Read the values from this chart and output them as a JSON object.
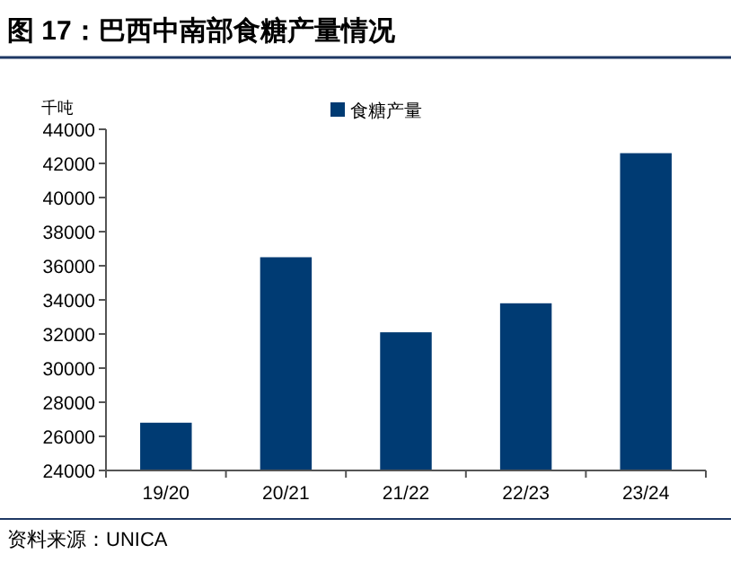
{
  "chart_data": {
    "type": "bar",
    "title": "图 17：巴西中南部食糖产量情况",
    "ylabel": "千吨",
    "categories": [
      "19/20",
      "20/21",
      "21/22",
      "22/23",
      "23/24"
    ],
    "series": [
      {
        "name": "食糖产量",
        "color": "#003b73",
        "values": [
          26800,
          36500,
          32100,
          33800,
          42600
        ]
      }
    ],
    "ylim": [
      24000,
      44000
    ],
    "yticks": [
      24000,
      26000,
      28000,
      30000,
      32000,
      34000,
      36000,
      38000,
      40000,
      42000,
      44000
    ],
    "grid": false,
    "legend": "top",
    "annotations": [
      "资料来源：UNICA"
    ]
  }
}
